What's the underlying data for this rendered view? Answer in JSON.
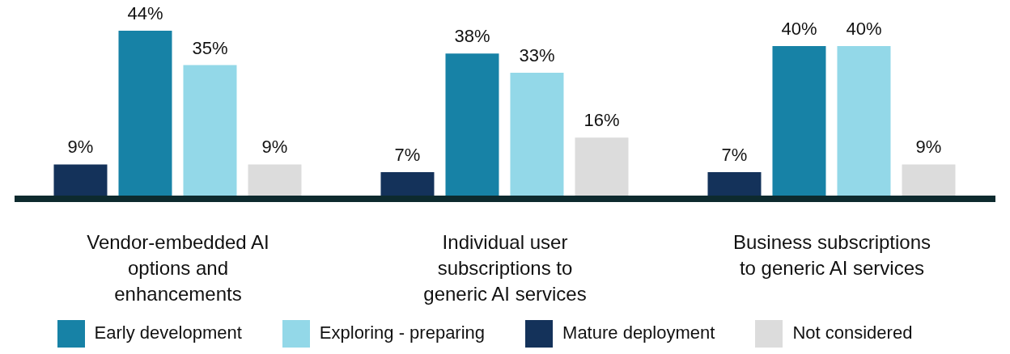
{
  "chart_data": {
    "type": "bar",
    "categories": [
      "Vendor-embedded AI options and enhancements",
      "Individual user subscriptions to generic AI services",
      "Business subscriptions to generic AI services"
    ],
    "series": [
      {
        "name": "Mature deployment",
        "color": "#14325a",
        "values": [
          9,
          7,
          7
        ],
        "value_labels": [
          "9%",
          "7%",
          "7%"
        ]
      },
      {
        "name": "Early development",
        "color": "#1782a6",
        "values": [
          44,
          38,
          40
        ],
        "value_labels": [
          "44%",
          "38%",
          "40%"
        ]
      },
      {
        "name": "Exploring - preparing",
        "color": "#93d8e8",
        "values": [
          35,
          33,
          40
        ],
        "value_labels": [
          "35%",
          "33%",
          "40%"
        ]
      },
      {
        "name": "Not considered",
        "color": "#dcdcdc",
        "values": [
          9,
          16,
          9
        ],
        "value_labels": [
          "9%",
          "16%",
          "9%"
        ]
      }
    ],
    "legend": "bottom"
  }
}
